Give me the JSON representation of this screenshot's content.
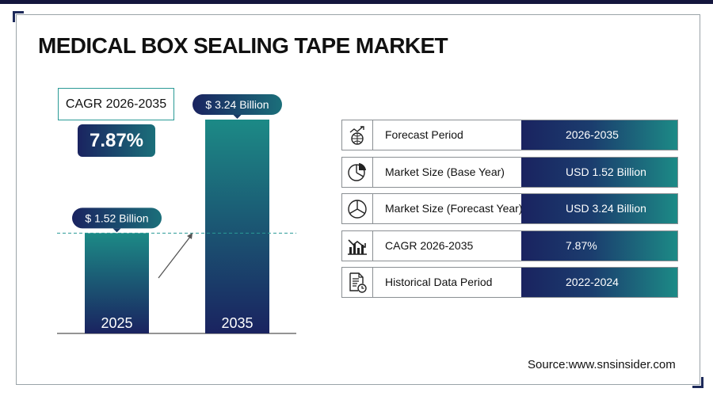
{
  "title": "MEDICAL BOX SEALING TAPE MARKET",
  "cagr": {
    "label": "CAGR 2026-2035",
    "value": "7.87%"
  },
  "chart_data": {
    "type": "bar",
    "categories": [
      "2025",
      "2035"
    ],
    "values": [
      1.52,
      3.24
    ],
    "value_labels": [
      "$ 1.52 Billion",
      "$ 3.24 Billion"
    ],
    "unit": "USD Billion",
    "title": "",
    "xlabel": "",
    "ylabel": ""
  },
  "table": {
    "rows": [
      {
        "icon": "forecast-chart-icon",
        "label": "Forecast Period",
        "value": "2026-2035"
      },
      {
        "icon": "pie-chart-icon",
        "label": "Market Size (Base Year)",
        "value": "USD 1.52 Billion"
      },
      {
        "icon": "pie-chart-icon",
        "label": "Market Size (Forecast Year)",
        "value": "USD 3.24 Billion"
      },
      {
        "icon": "growth-bars-icon",
        "label": "CAGR 2026-2035",
        "value": "7.87%"
      },
      {
        "icon": "document-clock-icon",
        "label": "Historical Data Period",
        "value": "2022-2024"
      }
    ]
  },
  "colors": {
    "navy": "#1a2360",
    "teal": "#1c8a86",
    "dark_teal": "#0f5a63"
  },
  "source": "Source:www.snsinsider.com"
}
